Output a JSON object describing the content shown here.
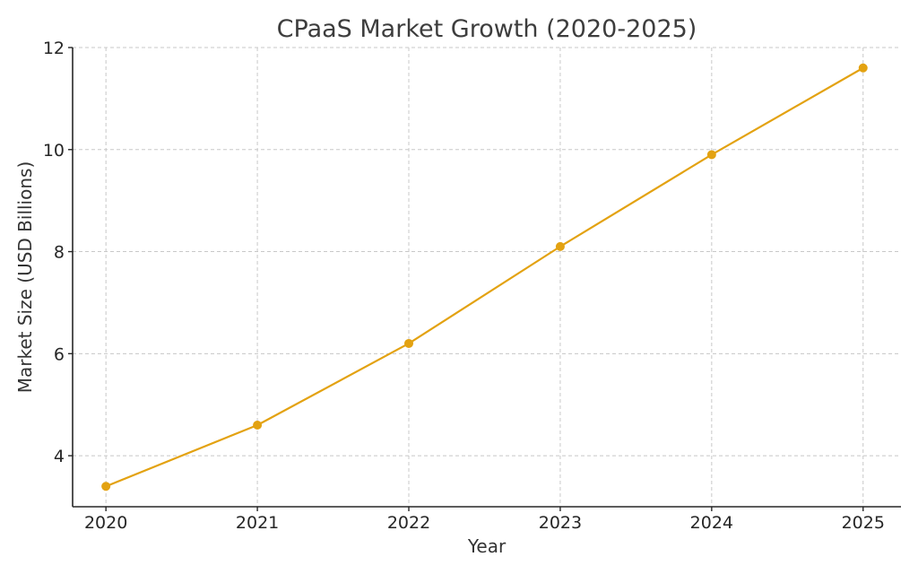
{
  "chart_data": {
    "type": "line",
    "title": "CPaaS Market Growth (2020-2025)",
    "xlabel": "Year",
    "ylabel": "Market Size (USD Billions)",
    "x": [
      2020,
      2021,
      2022,
      2023,
      2024,
      2025
    ],
    "series": [
      {
        "name": "",
        "values": [
          3.4,
          4.6,
          6.2,
          8.1,
          9.9,
          11.6
        ],
        "color": "#e3a211"
      }
    ],
    "x_ticks": [
      "2020",
      "2021",
      "2022",
      "2023",
      "2024",
      "2025"
    ],
    "y_ticks": [
      4,
      6,
      8,
      10,
      12
    ],
    "xlim": [
      2019.78,
      2025.25
    ],
    "ylim": [
      3.0,
      12.0
    ],
    "grid": true,
    "legend": "none"
  }
}
